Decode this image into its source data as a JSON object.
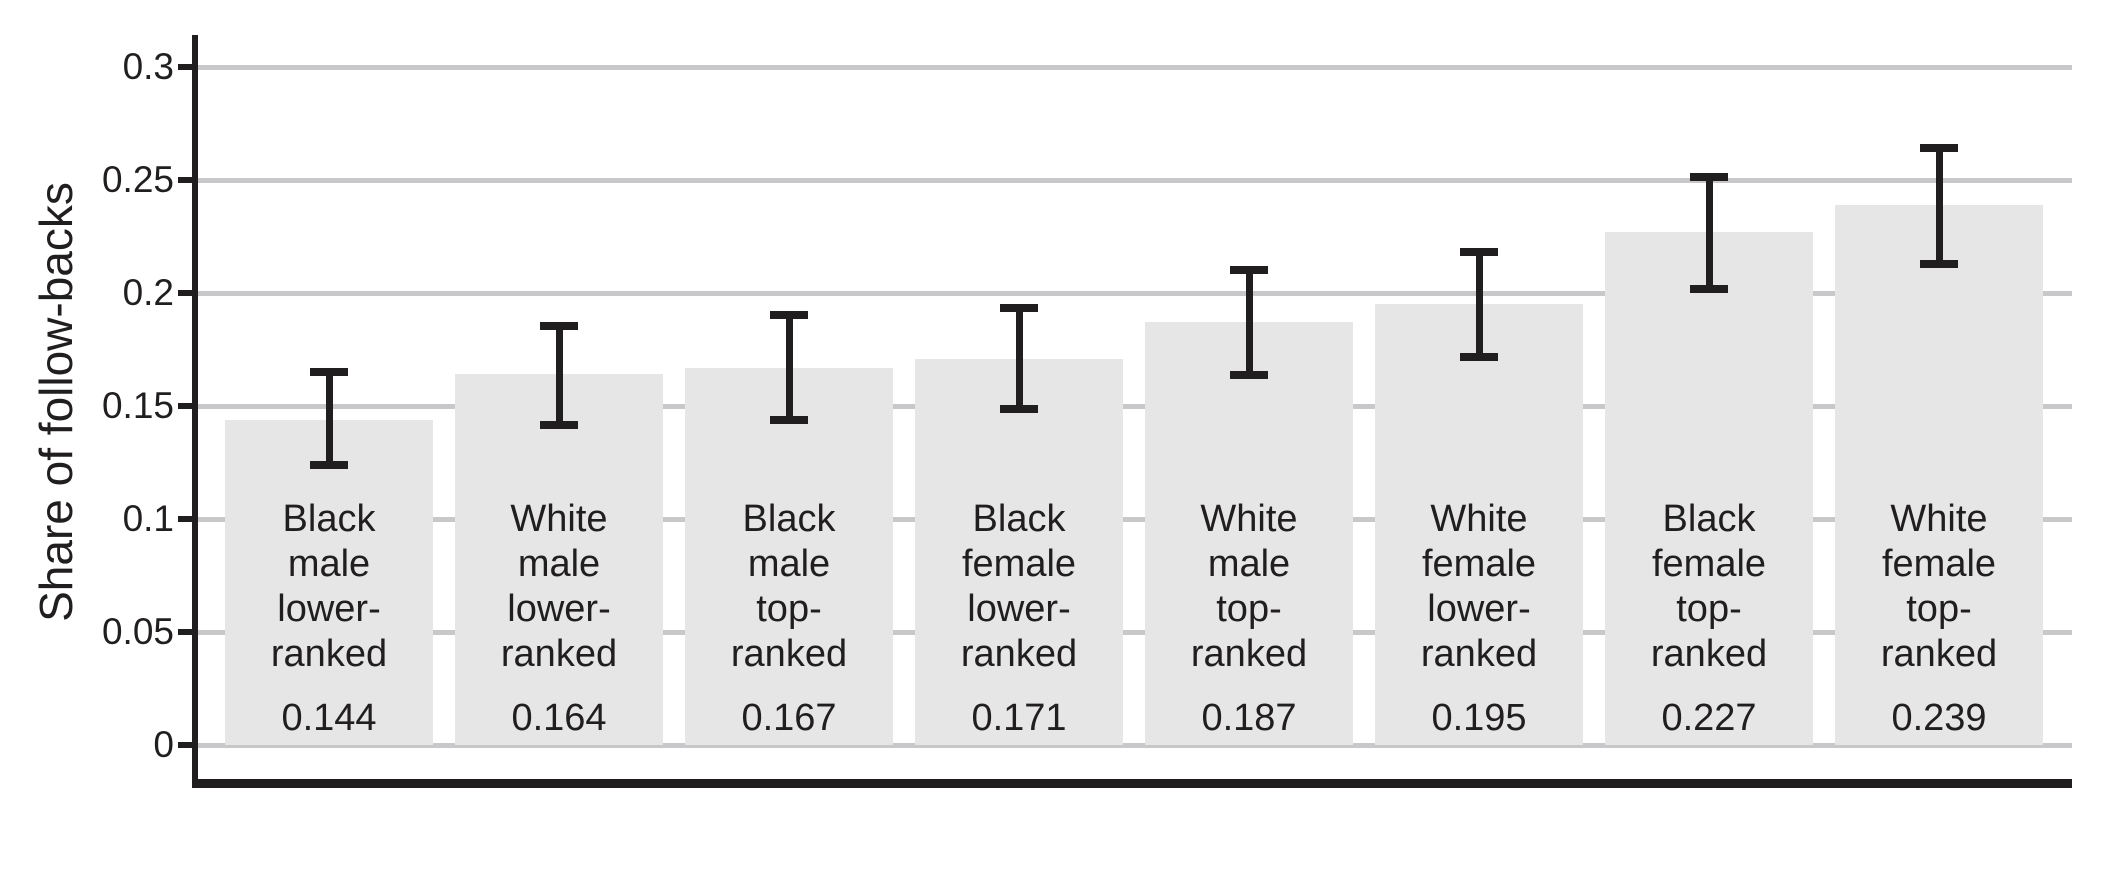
{
  "chart_data": {
    "type": "bar",
    "title": "",
    "ylabel": "Share of follow-backs",
    "xlabel": "",
    "ylim": [
      0,
      0.3
    ],
    "grid": "horizontal gridlines, light gray, behind bars",
    "legend": "none",
    "error_bars": true,
    "yticks": [
      {
        "value": 0.3,
        "label": "0.3"
      },
      {
        "value": 0.25,
        "label": "0.25"
      },
      {
        "value": 0.2,
        "label": "0.2"
      },
      {
        "value": 0.15,
        "label": "0.15"
      },
      {
        "value": 0.1,
        "label": "0.1"
      },
      {
        "value": 0.05,
        "label": "0.05"
      },
      {
        "value": 0,
        "label": "0"
      }
    ],
    "categories": [
      "Black male lower-ranked",
      "White male lower-ranked",
      "Black male top-ranked",
      "Black female lower-ranked",
      "White male top-ranked",
      "White female lower-ranked",
      "Black female top-ranked",
      "White female top-ranked"
    ],
    "bars": [
      {
        "label_lines": [
          "Black",
          "male",
          "lower-",
          "ranked"
        ],
        "value": 0.144,
        "value_label": "0.144",
        "ci_low": 0.122,
        "ci_high": 0.167
      },
      {
        "label_lines": [
          "White",
          "male",
          "lower-",
          "ranked"
        ],
        "value": 0.164,
        "value_label": "0.164",
        "ci_low": 0.14,
        "ci_high": 0.187
      },
      {
        "label_lines": [
          "Black",
          "male",
          "top-",
          "ranked"
        ],
        "value": 0.167,
        "value_label": "0.167",
        "ci_low": 0.142,
        "ci_high": 0.192
      },
      {
        "label_lines": [
          "Black",
          "female",
          "lower-",
          "ranked"
        ],
        "value": 0.171,
        "value_label": "0.171",
        "ci_low": 0.147,
        "ci_high": 0.195
      },
      {
        "label_lines": [
          "White",
          "male",
          "top-",
          "ranked"
        ],
        "value": 0.187,
        "value_label": "0.187",
        "ci_low": 0.162,
        "ci_high": 0.212
      },
      {
        "label_lines": [
          "White",
          "female",
          "lower-",
          "ranked"
        ],
        "value": 0.195,
        "value_label": "0.195",
        "ci_low": 0.17,
        "ci_high": 0.22
      },
      {
        "label_lines": [
          "Black",
          "female",
          "top-",
          "ranked"
        ],
        "value": 0.227,
        "value_label": "0.227",
        "ci_low": 0.2,
        "ci_high": 0.253
      },
      {
        "label_lines": [
          "White",
          "female",
          "top-",
          "ranked"
        ],
        "value": 0.239,
        "value_label": "0.239",
        "ci_low": 0.211,
        "ci_high": 0.266
      }
    ],
    "colors": {
      "bar_fill": "#e6e6e6",
      "gridline": "#c8c8ca",
      "ink": "#211e1f",
      "background": "#ffffff"
    }
  }
}
